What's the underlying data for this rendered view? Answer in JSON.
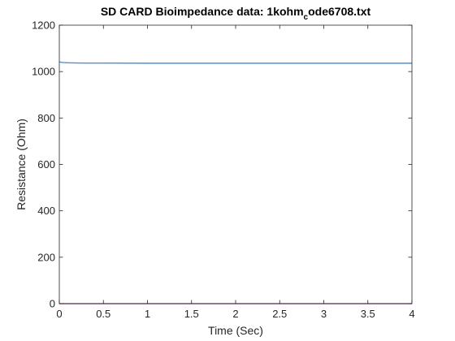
{
  "chart_data": {
    "type": "line",
    "title": {
      "prefix": "SD CARD Bioimpedance data: 1kohm",
      "subscript": "c",
      "suffix": "ode6708.txt"
    },
    "xlabel": "Time (Sec)",
    "ylabel": "Resistance (Ohm)",
    "xlim": [
      0,
      4
    ],
    "ylim": [
      0,
      1200
    ],
    "xticks": [
      0,
      0.5,
      1,
      1.5,
      2,
      2.5,
      3,
      3.5,
      4
    ],
    "xtick_labels": [
      "0",
      "0.5",
      "1",
      "1.5",
      "2",
      "2.5",
      "3",
      "3.5",
      "4"
    ],
    "yticks": [
      0,
      200,
      400,
      600,
      800,
      1000,
      1200
    ],
    "ytick_labels": [
      "0",
      "200",
      "400",
      "600",
      "800",
      "1000",
      "1200"
    ],
    "grid": false,
    "series": [
      {
        "color": "#4a90d9",
        "x": [
          0,
          0.02,
          0.05,
          0.1,
          0.15,
          0.2,
          0.3,
          0.5,
          1,
          1.5,
          2,
          2.5,
          3,
          3.5,
          4
        ],
        "y": [
          1042,
          1040,
          1039,
          1038,
          1037.5,
          1037,
          1036.5,
          1036.5,
          1036,
          1036,
          1036,
          1036,
          1036,
          1036,
          1036
        ]
      },
      {
        "color": "#c86fc8",
        "x": [
          0,
          1,
          2,
          3,
          4
        ],
        "y": [
          0,
          0,
          0,
          0,
          0
        ]
      }
    ]
  }
}
